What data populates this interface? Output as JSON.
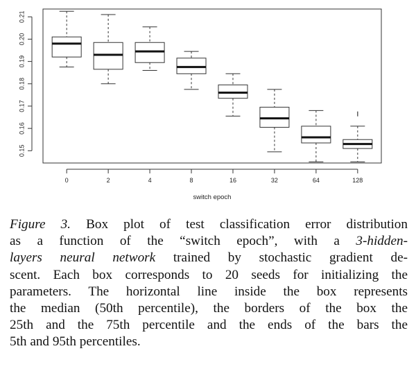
{
  "chart_data": {
    "type": "boxplot",
    "title": "",
    "xlabel": "switch epoch",
    "ylabel": "",
    "categories": [
      "0",
      "2",
      "4",
      "8",
      "16",
      "32",
      "64",
      "128"
    ],
    "boxes": [
      {
        "whisker_low": 0.1875,
        "q1": 0.192,
        "median": 0.198,
        "q3": 0.201,
        "whisker_high": 0.2125,
        "outliers": []
      },
      {
        "whisker_low": 0.18,
        "q1": 0.1865,
        "median": 0.193,
        "q3": 0.1985,
        "whisker_high": 0.211,
        "outliers": []
      },
      {
        "whisker_low": 0.186,
        "q1": 0.1895,
        "median": 0.1945,
        "q3": 0.1985,
        "whisker_high": 0.2055,
        "outliers": []
      },
      {
        "whisker_low": 0.1775,
        "q1": 0.1845,
        "median": 0.1875,
        "q3": 0.1915,
        "whisker_high": 0.1945,
        "outliers": []
      },
      {
        "whisker_low": 0.1655,
        "q1": 0.1735,
        "median": 0.176,
        "q3": 0.1795,
        "whisker_high": 0.1845,
        "outliers": []
      },
      {
        "whisker_low": 0.1495,
        "q1": 0.1605,
        "median": 0.1645,
        "q3": 0.1695,
        "whisker_high": 0.1775,
        "outliers": []
      },
      {
        "whisker_low": 0.145,
        "q1": 0.1535,
        "median": 0.156,
        "q3": 0.161,
        "whisker_high": 0.168,
        "outliers": []
      },
      {
        "whisker_low": 0.145,
        "q1": 0.151,
        "median": 0.153,
        "q3": 0.155,
        "whisker_high": 0.161,
        "outliers": [
          0.1665
        ]
      }
    ],
    "yticks": [
      "0.15",
      "0.16",
      "0.17",
      "0.18",
      "0.19",
      "0.20",
      "0.21"
    ],
    "ylim": [
      0.1445,
      0.2135
    ],
    "grid": false,
    "legend": "none"
  },
  "caption": {
    "lines": [
      [
        {
          "t": "Figure 3.",
          "i": true
        },
        {
          "t": " Box plot of test classification error distribution",
          "i": false
        }
      ],
      [
        {
          "t": "as a function of the “switch epoch”, with a ",
          "i": false
        },
        {
          "t": "3-hidden-",
          "i": true
        }
      ],
      [
        {
          "t": "layers neural network",
          "i": true
        },
        {
          "t": " trained by stochastic gradient de-",
          "i": false
        }
      ],
      [
        {
          "t": "scent.  Each box corresponds to 20 seeds for initializing the",
          "i": false
        }
      ],
      [
        {
          "t": "parameters.  The horizontal line inside the box represents",
          "i": false
        }
      ],
      [
        {
          "t": "the median (50th percentile), the borders of the box the",
          "i": false
        }
      ],
      [
        {
          "t": "25th and the 75th percentile and the ends of the bars the",
          "i": false
        }
      ],
      [
        {
          "t": "5th and 95th percentiles.",
          "i": false
        }
      ]
    ]
  }
}
